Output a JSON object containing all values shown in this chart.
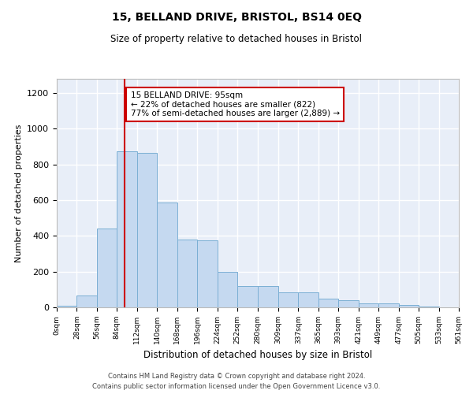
{
  "title": "15, BELLAND DRIVE, BRISTOL, BS14 0EQ",
  "subtitle": "Size of property relative to detached houses in Bristol",
  "xlabel": "Distribution of detached houses by size in Bristol",
  "ylabel": "Number of detached properties",
  "bar_color": "#c5d9f0",
  "bar_edge_color": "#7bafd4",
  "background_color": "#e8eef8",
  "grid_color": "#ffffff",
  "annotation_box_color": "#ffffff",
  "annotation_box_edge": "#cc0000",
  "property_line_color": "#cc0000",
  "property_size": 95,
  "annotation_text": "15 BELLAND DRIVE: 95sqm\n← 22% of detached houses are smaller (822)\n77% of semi-detached houses are larger (2,889) →",
  "footer_line1": "Contains HM Land Registry data © Crown copyright and database right 2024.",
  "footer_line2": "Contains public sector information licensed under the Open Government Licence v3.0.",
  "bin_edges": [
    0,
    28,
    56,
    84,
    112,
    140,
    168,
    196,
    224,
    252,
    280,
    309,
    337,
    365,
    393,
    421,
    449,
    477,
    505,
    533,
    561
  ],
  "bar_heights": [
    10,
    65,
    440,
    875,
    865,
    585,
    380,
    375,
    200,
    120,
    120,
    85,
    85,
    50,
    40,
    20,
    20,
    15,
    5,
    2
  ],
  "ylim": [
    0,
    1280
  ],
  "yticks": [
    0,
    200,
    400,
    600,
    800,
    1000,
    1200
  ],
  "tick_labels": [
    "0sqm",
    "28sqm",
    "56sqm",
    "84sqm",
    "112sqm",
    "140sqm",
    "168sqm",
    "196sqm",
    "224sqm",
    "252sqm",
    "280sqm",
    "309sqm",
    "337sqm",
    "365sqm",
    "393sqm",
    "421sqm",
    "449sqm",
    "477sqm",
    "505sqm",
    "533sqm",
    "561sqm"
  ],
  "figsize": [
    6.0,
    5.0
  ],
  "dpi": 100
}
